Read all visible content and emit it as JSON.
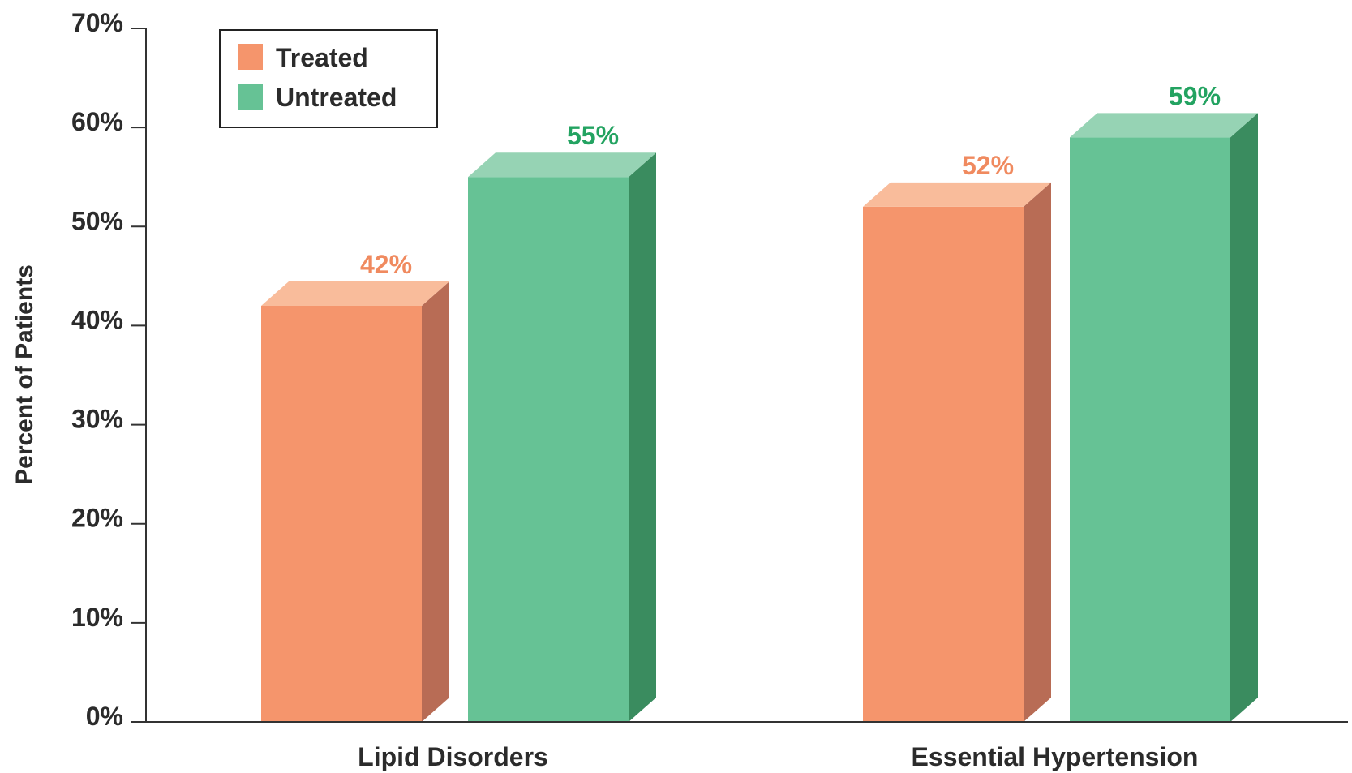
{
  "chart_data": {
    "type": "bar",
    "categories": [
      "Lipid Disorders",
      "Essential Hypertension"
    ],
    "series": [
      {
        "name": "Treated",
        "values": [
          42,
          52
        ],
        "color": "#f5956c",
        "top_color": "#f9bc9b",
        "side_color": "#b86c55",
        "label_color": "#f08a5f"
      },
      {
        "name": "Untreated",
        "values": [
          55,
          59
        ],
        "color": "#66c295",
        "top_color": "#96d3b4",
        "side_color": "#3a8c5f",
        "label_color": "#23a361"
      }
    ],
    "data_labels": [
      [
        "42%",
        "52%"
      ],
      [
        "55%",
        "59%"
      ]
    ],
    "title": "",
    "xlabel": "",
    "ylabel": "Percent of Patients",
    "ylim": [
      0,
      70
    ],
    "y_ticks": [
      "0%",
      "10%",
      "20%",
      "30%",
      "40%",
      "50%",
      "60%",
      "70%"
    ],
    "grid": false,
    "legend_position": "top-left"
  }
}
